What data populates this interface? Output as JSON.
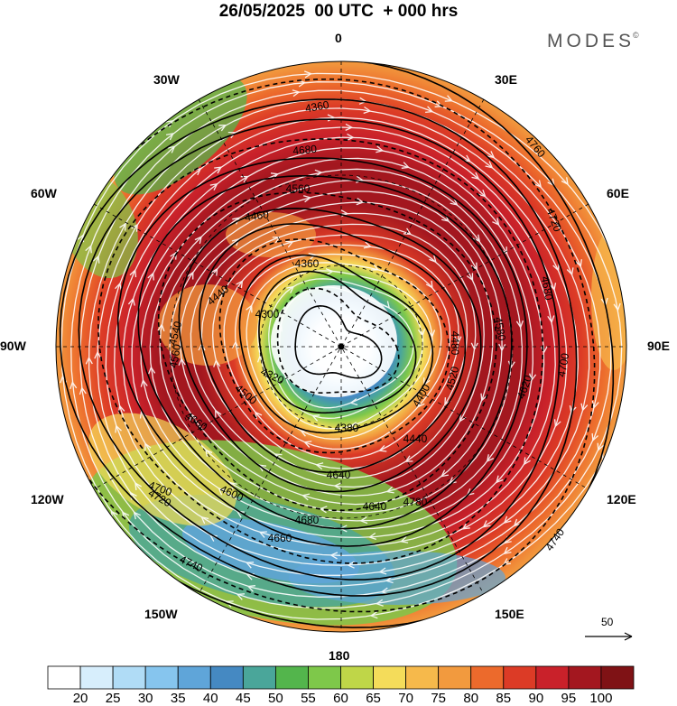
{
  "header": {
    "title": "26/05/2025  00 UTC  + 000 hrs",
    "brand": "MODES"
  },
  "map": {
    "projection": "polar stereographic, south pole centred",
    "longitude_labels": [
      "0",
      "30E",
      "60E",
      "90E",
      "120E",
      "150E",
      "180",
      "150W",
      "120W",
      "90W",
      "60W",
      "30W"
    ],
    "contour_labels": [
      "4360",
      "4680",
      "4560",
      "4460",
      "4360",
      "4440",
      "4300",
      "4320",
      "4380",
      "4400",
      "4480",
      "4520",
      "4580",
      "4620",
      "4680",
      "4700",
      "4720",
      "4740",
      "4760",
      "4780",
      "4640",
      "4600",
      "4660",
      "4560",
      "4540",
      "4500",
      "4440",
      "4720",
      "4740",
      "4700",
      "4680",
      "4660",
      "4640"
    ],
    "vector_scale_label": "50",
    "icons": {
      "pole": "pole-marker-icon",
      "vectors": "wind-arrow-icon"
    }
  },
  "colorbar": {
    "ticks": [
      "20",
      "25",
      "30",
      "35",
      "40",
      "45",
      "50",
      "55",
      "60",
      "65",
      "70",
      "75",
      "80",
      "85",
      "90",
      "95",
      "100"
    ],
    "colors": [
      "#ffffff",
      "#d7eefc",
      "#b0dcf6",
      "#86c5ee",
      "#5fa5d9",
      "#4589c2",
      "#4aa69a",
      "#53b54c",
      "#7ec84a",
      "#bfd648",
      "#f4dc5a",
      "#f6b94b",
      "#f29a3e",
      "#ec6a2c",
      "#dc3b26",
      "#c9212a",
      "#a3171f",
      "#7f1215"
    ]
  }
}
